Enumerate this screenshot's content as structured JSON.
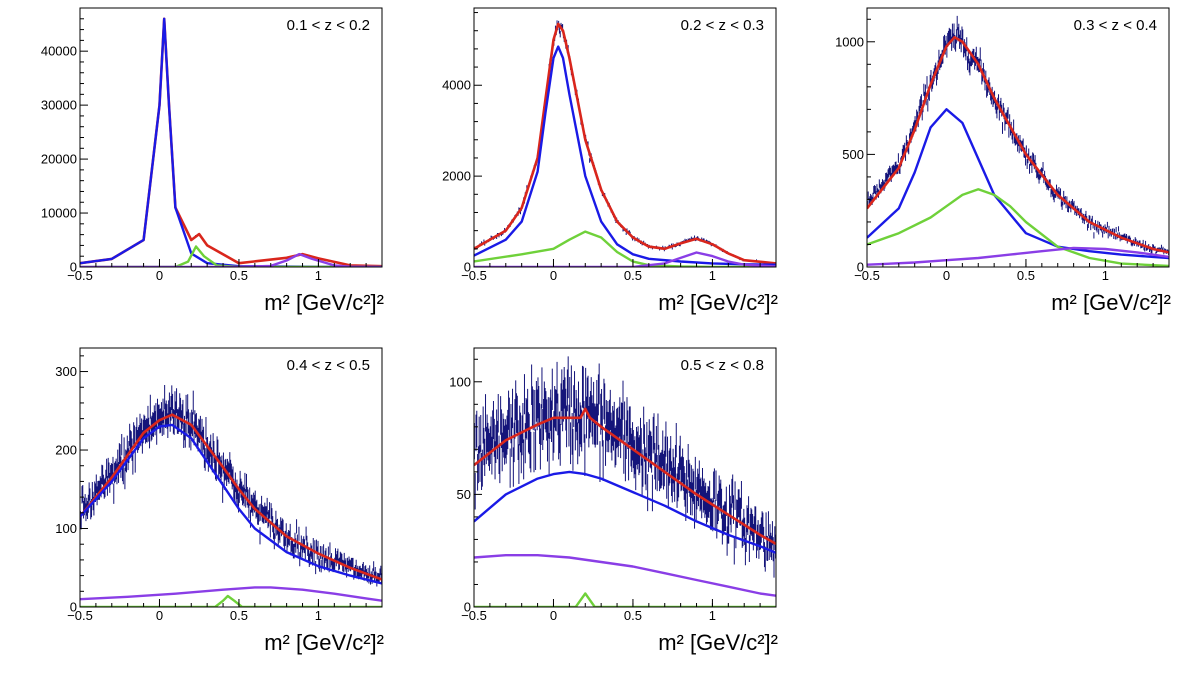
{
  "colors": {
    "data": "#14147a",
    "total_fit": "#d9261c",
    "blue": "#1a1ae6",
    "green": "#6fd13a",
    "purple": "#8a3ee6"
  },
  "chart_data": [
    {
      "type": "line",
      "title": "0.1 < z < 0.2",
      "xlabel": "m² [GeV/c²]²",
      "xlim": [
        -0.5,
        1.4
      ],
      "ylim": [
        0,
        48000
      ],
      "xticks": [
        -0.5,
        0,
        0.5,
        1
      ],
      "xtick_labels": [
        "−0.5",
        "0",
        "0.5",
        "1"
      ],
      "yticks": [
        0,
        10000,
        20000,
        30000,
        40000
      ],
      "ytick_labels": [
        "0",
        "10000",
        "20000",
        "30000",
        "40000"
      ],
      "series": [
        {
          "role": "data",
          "color": "#14147a",
          "x": [
            -0.5,
            -0.3,
            -0.1,
            0.0,
            0.03,
            0.06,
            0.1,
            0.2,
            0.25,
            0.3,
            0.5,
            0.8,
            0.9,
            1.0,
            1.2,
            1.4
          ],
          "y": [
            700,
            1500,
            5000,
            30000,
            46000,
            30000,
            11000,
            5000,
            6200,
            4000,
            700,
            1700,
            2400,
            1600,
            300,
            150
          ]
        },
        {
          "role": "total",
          "color": "#d9261c",
          "x": [
            -0.5,
            -0.3,
            -0.1,
            0.0,
            0.03,
            0.06,
            0.1,
            0.2,
            0.25,
            0.3,
            0.5,
            0.8,
            0.9,
            1.0,
            1.2,
            1.4
          ],
          "y": [
            700,
            1500,
            5000,
            30000,
            46000,
            30000,
            11000,
            5000,
            6100,
            4000,
            700,
            1700,
            2400,
            1600,
            300,
            150
          ]
        },
        {
          "role": "blue",
          "color": "#1a1ae6",
          "x": [
            -0.5,
            -0.3,
            -0.1,
            0.0,
            0.03,
            0.06,
            0.1,
            0.2,
            0.3,
            0.5,
            1.0,
            1.4
          ],
          "y": [
            700,
            1500,
            5000,
            30000,
            46000,
            30000,
            11000,
            2500,
            700,
            150,
            30,
            10
          ]
        },
        {
          "role": "green",
          "color": "#6fd13a",
          "x": [
            -0.5,
            0.1,
            0.18,
            0.23,
            0.28,
            0.36,
            0.5,
            1.4
          ],
          "y": [
            0,
            0,
            1000,
            3800,
            2000,
            300,
            0,
            0
          ]
        },
        {
          "role": "purple",
          "color": "#8a3ee6",
          "x": [
            -0.5,
            0.5,
            0.7,
            0.8,
            0.88,
            0.96,
            1.1,
            1.2,
            1.4
          ],
          "y": [
            0,
            0,
            200,
            1200,
            2400,
            1500,
            300,
            50,
            0
          ]
        }
      ]
    },
    {
      "type": "line",
      "title": "0.2 < z < 0.3",
      "xlabel": "m² [GeV/c²]²",
      "xlim": [
        -0.5,
        1.4
      ],
      "ylim": [
        0,
        5700
      ],
      "xticks": [
        -0.5,
        0,
        0.5,
        1
      ],
      "xtick_labels": [
        "−0.5",
        "0",
        "0.5",
        "1"
      ],
      "yticks": [
        0,
        2000,
        4000
      ],
      "ytick_labels": [
        "0",
        "2000",
        "4000"
      ],
      "series": [
        {
          "role": "data",
          "color": "#14147a",
          "x": [
            -0.5,
            -0.3,
            -0.2,
            -0.1,
            -0.05,
            0.0,
            0.03,
            0.06,
            0.1,
            0.2,
            0.3,
            0.4,
            0.5,
            0.6,
            0.7,
            0.8,
            0.9,
            1.0,
            1.1,
            1.2,
            1.4
          ],
          "y": [
            400,
            800,
            1300,
            2400,
            3700,
            5000,
            5400,
            5200,
            4600,
            2800,
            1700,
            1000,
            650,
            450,
            400,
            520,
            650,
            500,
            300,
            150,
            80
          ]
        },
        {
          "role": "total",
          "color": "#d9261c",
          "x": [
            -0.5,
            -0.3,
            -0.2,
            -0.1,
            -0.05,
            0.0,
            0.03,
            0.06,
            0.1,
            0.2,
            0.3,
            0.4,
            0.5,
            0.6,
            0.7,
            0.8,
            0.9,
            1.0,
            1.1,
            1.2,
            1.4
          ],
          "y": [
            400,
            800,
            1300,
            2400,
            3700,
            5000,
            5350,
            5200,
            4600,
            2800,
            1700,
            1000,
            650,
            450,
            400,
            520,
            620,
            500,
            300,
            150,
            80
          ]
        },
        {
          "role": "blue",
          "color": "#1a1ae6",
          "x": [
            -0.5,
            -0.3,
            -0.2,
            -0.1,
            -0.05,
            0.0,
            0.03,
            0.06,
            0.1,
            0.2,
            0.3,
            0.4,
            0.5,
            0.6,
            0.8,
            1.0,
            1.2,
            1.4
          ],
          "y": [
            250,
            600,
            1000,
            2100,
            3400,
            4600,
            4850,
            4600,
            3800,
            2000,
            1000,
            500,
            280,
            180,
            120,
            80,
            60,
            50
          ]
        },
        {
          "role": "green",
          "color": "#6fd13a",
          "x": [
            -0.5,
            -0.2,
            0.0,
            0.1,
            0.2,
            0.3,
            0.4,
            0.5,
            0.6,
            0.8,
            1.0,
            1.4
          ],
          "y": [
            120,
            280,
            400,
            600,
            780,
            650,
            330,
            120,
            40,
            10,
            0,
            0
          ]
        },
        {
          "role": "purple",
          "color": "#8a3ee6",
          "x": [
            -0.5,
            0.5,
            0.7,
            0.8,
            0.9,
            1.0,
            1.1,
            1.2,
            1.4
          ],
          "y": [
            0,
            0,
            80,
            200,
            320,
            240,
            120,
            50,
            10
          ]
        }
      ]
    },
    {
      "type": "line",
      "title": "0.3 < z < 0.4",
      "xlabel": "m² [GeV/c²]²",
      "xlim": [
        -0.5,
        1.4
      ],
      "ylim": [
        0,
        1150
      ],
      "xticks": [
        -0.5,
        0,
        0.5,
        1
      ],
      "xtick_labels": [
        "−0.5",
        "0",
        "0.5",
        "1"
      ],
      "yticks": [
        0,
        500,
        1000
      ],
      "ytick_labels": [
        "0",
        "500",
        "1000"
      ],
      "series": [
        {
          "role": "data",
          "color": "#14147a",
          "x": [
            -0.5,
            -0.3,
            -0.2,
            -0.1,
            0.0,
            0.05,
            0.1,
            0.2,
            0.3,
            0.5,
            0.7,
            0.9,
            1.1,
            1.3,
            1.4
          ],
          "y": [
            280,
            450,
            620,
            820,
            980,
            1020,
            1000,
            900,
            750,
            500,
            320,
            200,
            130,
            80,
            65
          ]
        },
        {
          "role": "total",
          "color": "#d9261c",
          "x": [
            -0.5,
            -0.3,
            -0.2,
            -0.1,
            0.0,
            0.05,
            0.1,
            0.2,
            0.3,
            0.5,
            0.7,
            0.9,
            1.1,
            1.3,
            1.4
          ],
          "y": [
            260,
            440,
            610,
            810,
            980,
            1020,
            1000,
            900,
            750,
            500,
            320,
            200,
            130,
            80,
            65
          ]
        },
        {
          "role": "blue",
          "color": "#1a1ae6",
          "x": [
            -0.5,
            -0.3,
            -0.2,
            -0.1,
            0.0,
            0.1,
            0.2,
            0.3,
            0.5,
            0.7,
            0.9,
            1.1,
            1.3,
            1.4
          ],
          "y": [
            130,
            260,
            420,
            620,
            700,
            640,
            480,
            320,
            150,
            90,
            70,
            55,
            45,
            40
          ]
        },
        {
          "role": "green",
          "color": "#6fd13a",
          "x": [
            -0.5,
            -0.3,
            -0.1,
            0.0,
            0.1,
            0.2,
            0.3,
            0.4,
            0.5,
            0.7,
            0.9,
            1.1,
            1.4
          ],
          "y": [
            100,
            150,
            220,
            270,
            320,
            345,
            320,
            270,
            200,
            90,
            40,
            15,
            5
          ]
        },
        {
          "role": "purple",
          "color": "#8a3ee6",
          "x": [
            -0.5,
            -0.2,
            0.0,
            0.2,
            0.4,
            0.6,
            0.8,
            1.0,
            1.2,
            1.4
          ],
          "y": [
            10,
            20,
            30,
            40,
            55,
            70,
            85,
            80,
            65,
            45
          ]
        }
      ]
    },
    {
      "type": "line",
      "title": "0.4 < z < 0.5",
      "xlabel": "m² [GeV/c²]²",
      "xlim": [
        -0.5,
        1.4
      ],
      "ylim": [
        0,
        330
      ],
      "xticks": [
        -0.5,
        0,
        0.5,
        1
      ],
      "xtick_labels": [
        "−0.5",
        "0",
        "0.5",
        "1"
      ],
      "yticks": [
        0,
        100,
        200,
        300
      ],
      "ytick_labels": [
        "0",
        "100",
        "200",
        "300"
      ],
      "series": [
        {
          "role": "data",
          "color": "#14147a",
          "x": [
            -0.5,
            -0.3,
            -0.1,
            0.0,
            0.1,
            0.2,
            0.3,
            0.4,
            0.5,
            0.6,
            0.8,
            1.0,
            1.2,
            1.4
          ],
          "y": [
            120,
            165,
            225,
            240,
            250,
            235,
            205,
            180,
            150,
            125,
            90,
            68,
            50,
            35
          ]
        },
        {
          "role": "total",
          "color": "#d9261c",
          "x": [
            -0.5,
            -0.3,
            -0.1,
            0.0,
            0.08,
            0.2,
            0.3,
            0.4,
            0.5,
            0.6,
            0.8,
            1.0,
            1.2,
            1.4
          ],
          "y": [
            115,
            165,
            222,
            238,
            245,
            232,
            205,
            178,
            150,
            125,
            90,
            68,
            50,
            35
          ]
        },
        {
          "role": "blue",
          "color": "#1a1ae6",
          "x": [
            -0.5,
            -0.3,
            -0.1,
            0.0,
            0.08,
            0.2,
            0.3,
            0.4,
            0.5,
            0.6,
            0.8,
            1.0,
            1.2,
            1.4
          ],
          "y": [
            115,
            160,
            215,
            230,
            232,
            215,
            185,
            155,
            125,
            100,
            70,
            52,
            40,
            30
          ]
        },
        {
          "role": "green",
          "color": "#6fd13a",
          "x": [
            -0.5,
            0.35,
            0.4,
            0.43,
            0.47,
            0.52,
            1.4
          ],
          "y": [
            0,
            0,
            8,
            14,
            8,
            0,
            0
          ]
        },
        {
          "role": "purple",
          "color": "#8a3ee6",
          "x": [
            -0.5,
            -0.2,
            0.1,
            0.4,
            0.6,
            0.7,
            0.9,
            1.1,
            1.3,
            1.4
          ],
          "y": [
            10,
            13,
            17,
            22,
            25,
            25,
            22,
            17,
            11,
            8
          ]
        }
      ]
    },
    {
      "type": "line",
      "title": "0.5 < z < 0.8",
      "xlabel": "m² [GeV/c²]²",
      "xlim": [
        -0.5,
        1.4
      ],
      "ylim": [
        0,
        115
      ],
      "xticks": [
        -0.5,
        0,
        0.5,
        1
      ],
      "xtick_labels": [
        "−0.5",
        "0",
        "0.5",
        "1"
      ],
      "yticks": [
        0,
        50,
        100
      ],
      "ytick_labels": [
        "0",
        "50",
        "100"
      ],
      "series": [
        {
          "role": "data",
          "color": "#14147a",
          "x": [
            -0.5,
            -0.3,
            -0.1,
            0.0,
            0.1,
            0.2,
            0.3,
            0.5,
            0.7,
            0.9,
            1.1,
            1.3,
            1.4
          ],
          "y": [
            65,
            75,
            82,
            85,
            86,
            86,
            82,
            72,
            62,
            52,
            42,
            32,
            28
          ]
        },
        {
          "role": "total",
          "color": "#d9261c",
          "x": [
            -0.5,
            -0.3,
            -0.1,
            0.0,
            0.1,
            0.17,
            0.2,
            0.23,
            0.3,
            0.5,
            0.7,
            0.9,
            1.1,
            1.3,
            1.4
          ],
          "y": [
            63,
            74,
            81,
            84,
            84,
            84,
            88,
            84,
            80,
            70,
            60,
            50,
            41,
            32,
            28
          ]
        },
        {
          "role": "blue",
          "color": "#1a1ae6",
          "x": [
            -0.5,
            -0.3,
            -0.1,
            0.0,
            0.1,
            0.2,
            0.3,
            0.5,
            0.7,
            0.9,
            1.1,
            1.3,
            1.4
          ],
          "y": [
            38,
            50,
            57,
            59,
            60,
            59,
            57,
            51,
            45,
            38,
            32,
            27,
            24
          ]
        },
        {
          "role": "green",
          "color": "#6fd13a",
          "x": [
            -0.5,
            0.14,
            0.17,
            0.2,
            0.23,
            0.26,
            1.4
          ],
          "y": [
            0,
            0,
            3,
            6,
            3,
            0,
            0
          ]
        },
        {
          "role": "purple",
          "color": "#8a3ee6",
          "x": [
            -0.5,
            -0.3,
            -0.1,
            0.1,
            0.3,
            0.5,
            0.7,
            0.9,
            1.1,
            1.3,
            1.4
          ],
          "y": [
            22,
            23,
            23,
            22,
            20,
            18,
            15,
            12,
            9,
            6,
            5
          ]
        }
      ]
    }
  ]
}
